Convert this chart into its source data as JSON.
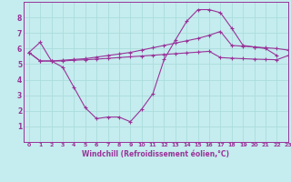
{
  "xlabel": "Windchill (Refroidissement éolien,°C)",
  "xlim": [
    -0.5,
    23
  ],
  "ylim": [
    0,
    9
  ],
  "xticks": [
    0,
    1,
    2,
    3,
    4,
    5,
    6,
    7,
    8,
    9,
    10,
    11,
    12,
    13,
    14,
    15,
    16,
    17,
    18,
    19,
    20,
    21,
    22,
    23
  ],
  "yticks": [
    1,
    2,
    3,
    4,
    5,
    6,
    7,
    8
  ],
  "bg_color": "#c5ecee",
  "line_color": "#993399",
  "grid_color": "#aadddd",
  "series1_x": [
    0,
    1,
    2,
    3,
    4,
    5,
    6,
    7,
    8,
    9,
    10,
    11,
    12,
    13,
    14,
    15,
    16,
    17,
    18,
    19,
    20,
    21,
    22
  ],
  "series1_y": [
    5.75,
    6.4,
    5.2,
    4.8,
    3.5,
    2.2,
    1.5,
    1.6,
    1.6,
    1.3,
    2.1,
    3.1,
    5.3,
    6.55,
    7.75,
    8.5,
    8.5,
    8.3,
    7.3,
    6.2,
    6.1,
    6.0,
    5.55
  ],
  "series2_x": [
    0,
    1,
    2,
    3,
    4,
    5,
    6,
    7,
    8,
    9,
    10,
    11,
    12,
    13,
    14,
    15,
    16,
    17,
    18,
    19,
    20,
    21,
    22,
    23
  ],
  "series2_y": [
    5.75,
    5.2,
    5.2,
    5.25,
    5.3,
    5.35,
    5.45,
    5.55,
    5.65,
    5.75,
    5.9,
    6.05,
    6.2,
    6.35,
    6.5,
    6.65,
    6.85,
    7.1,
    6.2,
    6.15,
    6.1,
    6.05,
    6.0,
    5.9
  ],
  "series3_x": [
    0,
    1,
    2,
    3,
    4,
    5,
    6,
    7,
    8,
    9,
    10,
    11,
    12,
    13,
    14,
    15,
    16,
    17,
    18,
    19,
    20,
    21,
    22,
    23
  ],
  "series3_y": [
    5.75,
    5.2,
    5.2,
    5.2,
    5.25,
    5.28,
    5.32,
    5.37,
    5.42,
    5.47,
    5.52,
    5.57,
    5.62,
    5.67,
    5.72,
    5.77,
    5.82,
    5.42,
    5.38,
    5.35,
    5.32,
    5.3,
    5.28,
    5.55
  ]
}
